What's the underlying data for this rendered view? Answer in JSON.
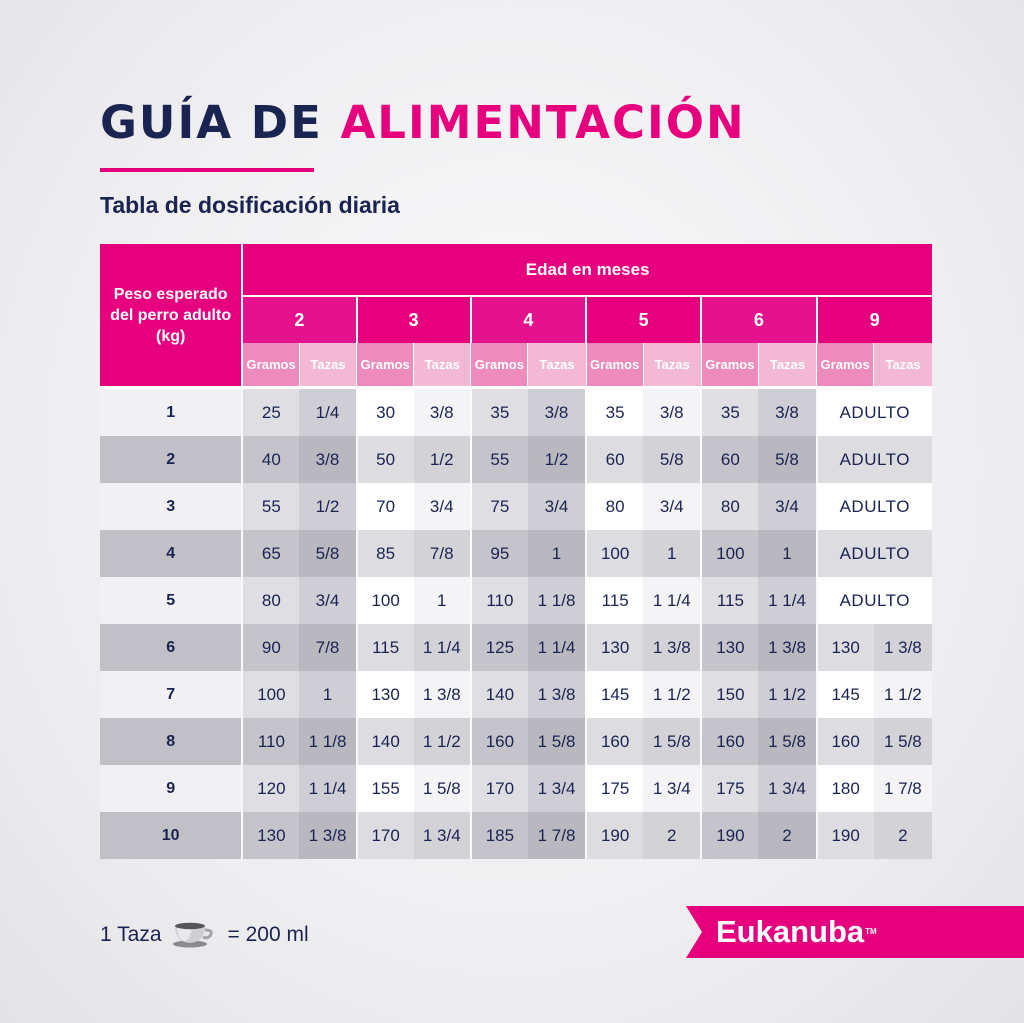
{
  "title": {
    "part1": "GUÍA DE",
    "part2": "ALIMENTACIÓN"
  },
  "subtitle": "Tabla de dosificación diaria",
  "table": {
    "corner_label": "Peso esperado del perro adulto (kg)",
    "age_header": "Edad en meses",
    "months": [
      "2",
      "3",
      "5",
      "6",
      "9"
    ],
    "months_all": [
      "2",
      "3",
      "4",
      "5",
      "6",
      "9"
    ],
    "sub_grams": "Gramos",
    "sub_cups": "Tazas",
    "rows": [
      {
        "kg": "1",
        "values": [
          "25",
          "1/4",
          "30",
          "3/8",
          "35",
          "3/8",
          "35",
          "3/8",
          "35",
          "3/8"
        ],
        "month9": "ADULTO"
      },
      {
        "kg": "2",
        "values": [
          "40",
          "3/8",
          "50",
          "1/2",
          "55",
          "1/2",
          "60",
          "5/8",
          "60",
          "5/8"
        ],
        "month9": "ADULTO"
      },
      {
        "kg": "3",
        "values": [
          "55",
          "1/2",
          "70",
          "3/4",
          "75",
          "3/4",
          "80",
          "3/4",
          "80",
          "3/4"
        ],
        "month9": "ADULTO"
      },
      {
        "kg": "4",
        "values": [
          "65",
          "5/8",
          "85",
          "7/8",
          "95",
          "1",
          "100",
          "1",
          "100",
          "1"
        ],
        "month9": "ADULTO"
      },
      {
        "kg": "5",
        "values": [
          "80",
          "3/4",
          "100",
          "1",
          "110",
          "1 1/8",
          "115",
          "1 1/4",
          "115",
          "1 1/4"
        ],
        "month9": "ADULTO"
      },
      {
        "kg": "6",
        "values": [
          "90",
          "7/8",
          "115",
          "1 1/4",
          "125",
          "1 1/4",
          "130",
          "1 3/8",
          "130",
          "1 3/8",
          "130",
          "1 3/8"
        ]
      },
      {
        "kg": "7",
        "values": [
          "100",
          "1",
          "130",
          "1 3/8",
          "140",
          "1 3/8",
          "145",
          "1 1/2",
          "150",
          "1 1/2",
          "145",
          "1 1/2"
        ]
      },
      {
        "kg": "8",
        "values": [
          "110",
          "1 1/8",
          "140",
          "1 1/2",
          "160",
          "1 5/8",
          "160",
          "1 5/8",
          "160",
          "1 5/8",
          "160",
          "1 5/8"
        ]
      },
      {
        "kg": "9",
        "values": [
          "120",
          "1 1/4",
          "155",
          "1 5/8",
          "170",
          "1 3/4",
          "175",
          "1 3/4",
          "175",
          "1 3/4",
          "180",
          "1 7/8"
        ]
      },
      {
        "kg": "10",
        "values": [
          "130",
          "1 3/8",
          "170",
          "1 3/4",
          "185",
          "1 7/8",
          "190",
          "2",
          "190",
          "2",
          "190",
          "2"
        ]
      }
    ]
  },
  "footnote": {
    "left": "1 Taza",
    "icon": "cup-icon",
    "right": "= 200 ml"
  },
  "brand": {
    "name": "Eukanuba",
    "tm": "TM"
  },
  "colors": {
    "navy": "#1a2451",
    "magenta": "#e6007e",
    "pink_light": "#f3b8d4"
  }
}
